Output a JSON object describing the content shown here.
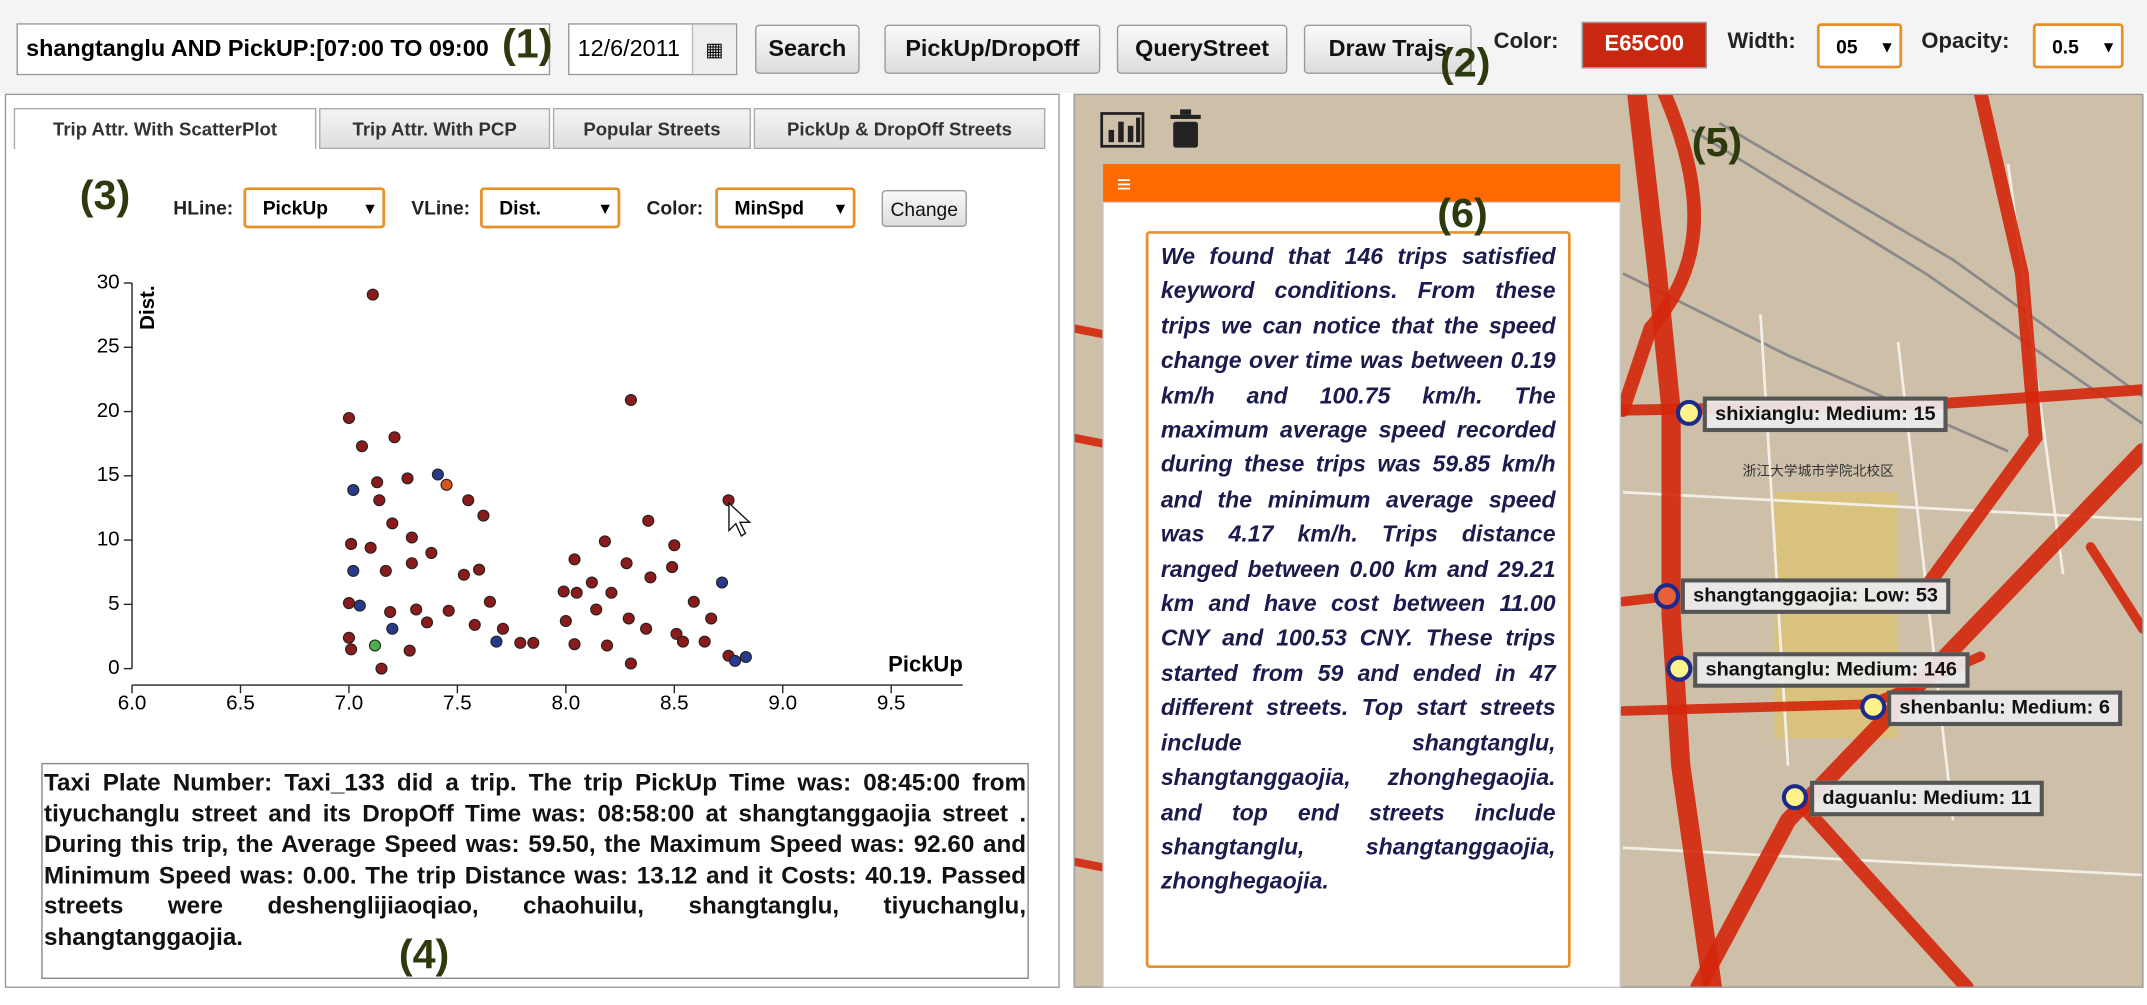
{
  "toolbar": {
    "query": "shangtanglu AND PickUP:[07:00 TO 09:00",
    "date": "12/6/2011",
    "buttons": [
      "Search",
      "PickUp/DropOff",
      "QueryStreet",
      "Draw Trajs"
    ],
    "color_label": "Color:",
    "color_value": "E65C00",
    "width_label": "Width:",
    "width_value": "05",
    "opacity_label": "Opacity:",
    "opacity_value": "0.5"
  },
  "annotations": [
    "(1)",
    "(2)",
    "(3)",
    "(4)",
    "(5)",
    "(6)"
  ],
  "tabs": [
    "Trip Attr. With ScatterPlot",
    "Trip Attr. With PCP",
    "Popular Streets",
    "PickUp & DropOff Streets"
  ],
  "controls": {
    "hline_label": "HLine:",
    "hline": "PickUp",
    "vline_label": "VLine:",
    "vline": "Dist.",
    "color_label": "Color:",
    "color": "MinSpd",
    "change": "Change"
  },
  "chart_data": {
    "type": "scatter",
    "x_label": "PickUp",
    "y_label": "Dist.",
    "x": [
      7.11,
      8.3,
      7.0,
      7.21,
      7.06,
      7.41,
      7.02,
      7.13,
      7.27,
      7.45,
      7.14,
      7.55,
      7.62,
      8.75,
      8.38,
      8.18,
      8.04,
      8.28,
      8.5,
      7.2,
      7.29,
      7.01,
      7.1,
      7.38,
      7.02,
      7.17,
      7.29,
      7.53,
      7.6,
      8.49,
      8.39,
      8.12,
      7.99,
      8.05,
      8.72,
      8.21,
      8.59,
      7.65,
      7.05,
      7.0,
      7.19,
      7.31,
      7.46,
      7.36,
      7.58,
      7.71,
      8.0,
      8.14,
      8.29,
      8.37,
      8.51,
      8.67,
      7.0,
      7.12,
      7.2,
      7.28,
      7.68,
      7.79,
      7.85,
      8.04,
      8.19,
      8.3,
      8.54,
      8.64,
      8.75,
      8.78,
      8.83,
      7.15,
      7.01
    ],
    "y": [
      29.1,
      20.9,
      19.5,
      18.0,
      17.3,
      15.1,
      13.9,
      14.5,
      14.8,
      14.3,
      13.1,
      13.1,
      11.9,
      13.1,
      11.5,
      9.9,
      8.5,
      8.2,
      9.6,
      11.3,
      10.2,
      9.7,
      9.4,
      9.0,
      7.6,
      7.6,
      8.2,
      7.3,
      7.7,
      7.9,
      7.1,
      6.7,
      6.0,
      5.9,
      6.7,
      5.9,
      5.2,
      5.2,
      4.9,
      5.1,
      4.4,
      4.6,
      4.5,
      3.6,
      3.4,
      3.1,
      3.7,
      4.6,
      3.9,
      3.1,
      2.7,
      3.9,
      2.4,
      1.8,
      3.1,
      1.4,
      2.1,
      2.0,
      2.0,
      1.9,
      1.8,
      0.4,
      2.1,
      2.1,
      1.0,
      0.6,
      0.9,
      0.0,
      1.5
    ],
    "colors": [
      "#8b1a1a",
      "#8b1a1a",
      "#8b1a1a",
      "#8b1a1a",
      "#8b1a1a",
      "#283a8c",
      "#283a8c",
      "#8b1a1a",
      "#8b1a1a",
      "#d9541e",
      "#8b1a1a",
      "#8b1a1a",
      "#8b1a1a",
      "#8b1a1a",
      "#8b1a1a",
      "#8b1a1a",
      "#8b1a1a",
      "#8b1a1a",
      "#8b1a1a",
      "#8b1a1a",
      "#8b1a1a",
      "#8b1a1a",
      "#8b1a1a",
      "#8b1a1a",
      "#283a8c",
      "#8b1a1a",
      "#8b1a1a",
      "#8b1a1a",
      "#8b1a1a",
      "#8b1a1a",
      "#8b1a1a",
      "#8b1a1a",
      "#8b1a1a",
      "#8b1a1a",
      "#283a8c",
      "#8b1a1a",
      "#8b1a1a",
      "#8b1a1a",
      "#283a8c",
      "#8b1a1a",
      "#8b1a1a",
      "#8b1a1a",
      "#8b1a1a",
      "#8b1a1a",
      "#8b1a1a",
      "#8b1a1a",
      "#8b1a1a",
      "#8b1a1a",
      "#8b1a1a",
      "#8b1a1a",
      "#8b1a1a",
      "#8b1a1a",
      "#8b1a1a",
      "#4caf50",
      "#283a8c",
      "#8b1a1a",
      "#283a8c",
      "#8b1a1a",
      "#8b1a1a",
      "#8b1a1a",
      "#8b1a1a",
      "#8b1a1a",
      "#8b1a1a",
      "#8b1a1a",
      "#8b1a1a",
      "#283a8c",
      "#283a8c",
      "#8b1a1a",
      "#8b1a1a"
    ],
    "xlim": [
      6.0,
      9.83
    ],
    "ylim": [
      0,
      30
    ],
    "xticks": [
      {
        "value": 6,
        "label": "6.0"
      },
      {
        "value": 6.5,
        "label": "6.5"
      },
      {
        "value": 7,
        "label": "7.0"
      },
      {
        "value": 7.5,
        "label": "7.5"
      },
      {
        "value": 8,
        "label": "8.0"
      },
      {
        "value": 8.5,
        "label": "8.5"
      },
      {
        "value": 9,
        "label": "9.0"
      },
      {
        "value": 9.5,
        "label": "9.5"
      }
    ],
    "yticks": [
      0,
      5,
      10,
      15,
      20,
      25,
      30
    ]
  },
  "trip_description": "Taxi Plate Number: Taxi_133 did a trip. The trip PickUp Time was: 08:45:00 from tiyuchanglu street and its DropOff Time was: 08:58:00 at shangtanggaojia street . During this trip, the Average Speed was: 59.50, the Maximum Speed was: 92.60 and Minimum Speed was: 0.00. The trip Distance was: 13.12 and it Costs: 40.19. Passed streets were deshenglijiaoqiao, chaohuilu, shangtanglu, tiyuchanglu, shangtanggaojia.",
  "map": {
    "markers": [
      "shixianglu: Medium: 15",
      "shangtanggaojia: Low: 53",
      "shangtanglu: Medium: 146",
      "shenbanlu: Medium: 6",
      "daguanlu: Medium: 11"
    ],
    "place_label": "浙江大学城市学院北校区"
  },
  "summary": "We found that 146 trips satisfied keyword conditions. From these trips we can notice that the speed change over time was between 0.19 km/h and 100.75 km/h. The maximum average speed recorded during these trips was 59.85 km/h and the minimum average speed was 4.17 km/h. Trips distance ranged between 0.00 km and 29.21 km and have cost between 11.00 CNY and 100.53 CNY. These trips started from 59 and ended in 47 different streets. Top start streets include shangtanglu, shangtanggaojia, zhonghegaojia. and top end streets include shangtanglu, shangtanggaojia, zhonghegaojia."
}
